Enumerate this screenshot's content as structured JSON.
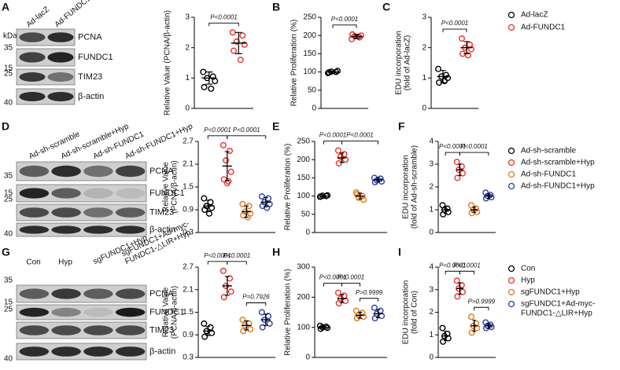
{
  "panel_letters": [
    "A",
    "B",
    "C",
    "D",
    "E",
    "F",
    "G",
    "H",
    "I"
  ],
  "blots": [
    {
      "kda": "kDa",
      "markers": [
        "35",
        "15",
        "25",
        "40"
      ],
      "lanes": [
        [
          "Ad-lacZ"
        ],
        [
          "Ad-FUNDC1"
        ]
      ],
      "proteins": [
        "PCNA",
        "FUNDC1",
        "TIM23",
        "β-actin"
      ]
    },
    {
      "markers": [
        "35",
        "15",
        "25",
        "40"
      ],
      "lanes": [
        [
          "Ad-sh-scramble"
        ],
        [
          "Ad-sh-scramble+Hyp"
        ],
        [
          "Ad-sh-FUNDC1"
        ],
        [
          "Ad-sh-FUNDC1+Hyp"
        ]
      ],
      "proteins": [
        "PCNA",
        "FUNDC1",
        "TIM23",
        "β-actin"
      ]
    },
    {
      "markers": [
        "35",
        "15",
        "25",
        "40"
      ],
      "lanes": [
        [
          "Con"
        ],
        [
          "Hyp"
        ],
        [
          "sgFUNDC1+Hyp"
        ],
        [
          "sgFUNDC1+Ad-myc-",
          "FUNDC1-△LIR+Hyp"
        ]
      ],
      "proteins": [
        "PCNA",
        "FUNDC1",
        "TIM23",
        "β-actin"
      ]
    }
  ],
  "legends": [
    [
      {
        "name": [
          "Ad-lacZ"
        ],
        "color": "#000000"
      },
      {
        "name": [
          "Ad-FUNDC1"
        ],
        "color": "#e8312a"
      }
    ],
    [
      {
        "name": [
          "Ad-sh-scramble"
        ],
        "color": "#000000"
      },
      {
        "name": [
          "Ad-sh-scramble+Hyp"
        ],
        "color": "#e8312a"
      },
      {
        "name": [
          "Ad-sh-FUNDC1"
        ],
        "color": "#e07b1a"
      },
      {
        "name": [
          "Ad-sh-FUNDC1+Hyp"
        ],
        "color": "#2d3fa0"
      }
    ],
    [
      {
        "name": [
          "Con"
        ],
        "color": "#000000"
      },
      {
        "name": [
          "Hyp"
        ],
        "color": "#e8312a"
      },
      {
        "name": [
          "sgFUNDC1+Hyp"
        ],
        "color": "#e07b1a"
      },
      {
        "name": [
          "sgFUNDC1+Ad-myc-",
          "FUNDC1-△LIR+Hyp"
        ],
        "color": "#2d3fa0"
      }
    ]
  ],
  "chart_data": [
    {
      "type": "dot",
      "ylabel": [
        "Relative Value (PCNA/β-actin)"
      ],
      "ylim": [
        0,
        3
      ],
      "yticks": [
        0,
        1,
        2,
        3
      ],
      "groups": [
        {
          "color": "#000000",
          "values": [
            1.2,
            1.05,
            1.0,
            0.9,
            0.7,
            0.65
          ],
          "mean": 1.0,
          "sd": 0.2
        },
        {
          "color": "#e8312a",
          "values": [
            2.5,
            2.4,
            2.2,
            2.1,
            1.9,
            1.6
          ],
          "mean": 2.15,
          "sd": 0.35
        }
      ],
      "comparisons": [
        {
          "between": [
            0,
            1
          ],
          "label": "P<0.0001"
        }
      ]
    },
    {
      "type": "dot",
      "ylabel": [
        "Relative Proliferation (%)"
      ],
      "ylim": [
        0,
        250
      ],
      "yticks": [
        0,
        50,
        100,
        150,
        200,
        250
      ],
      "groups": [
        {
          "color": "#000000",
          "values": [
            97,
            100,
            101,
            103,
            99
          ],
          "mean": 100,
          "sd": 3
        },
        {
          "color": "#e8312a",
          "values": [
            190,
            195,
            198,
            200,
            203,
            197
          ],
          "mean": 197,
          "sd": 5
        }
      ],
      "comparisons": [
        {
          "between": [
            0,
            1
          ],
          "label": "P<0.0001"
        }
      ]
    },
    {
      "type": "dot",
      "ylabel": [
        "EDU incorporation",
        "(fold of Ad-lacZ)"
      ],
      "ylim": [
        0,
        3
      ],
      "yticks": [
        0,
        1,
        2,
        3
      ],
      "groups": [
        {
          "color": "#000000",
          "values": [
            1.3,
            1.1,
            1.05,
            1.0,
            0.85,
            0.9
          ],
          "mean": 1.05,
          "sd": 0.2
        },
        {
          "color": "#e8312a",
          "values": [
            2.3,
            2.1,
            2.0,
            1.95,
            1.8,
            1.75
          ],
          "mean": 2.0,
          "sd": 0.2
        }
      ],
      "comparisons": [
        {
          "between": [
            0,
            1
          ],
          "label": "P<0.0001"
        }
      ]
    },
    {
      "type": "dot",
      "ylabel": [
        "Relative Value",
        "(PCNA/β-actin)"
      ],
      "ylim": [
        0.3,
        2.7
      ],
      "yticks": [
        0.3,
        0.9,
        1.5,
        2.1,
        2.7
      ],
      "groups": [
        {
          "color": "#000000",
          "values": [
            1.2,
            1.1,
            1.0,
            0.95,
            0.9,
            0.8
          ],
          "mean": 1.0,
          "sd": 0.15
        },
        {
          "color": "#e8312a",
          "values": [
            2.6,
            2.45,
            2.2,
            1.9,
            1.7,
            1.65,
            1.6
          ],
          "mean": 2.05,
          "sd": 0.38
        },
        {
          "color": "#e07b1a",
          "values": [
            1.05,
            1.0,
            0.85,
            0.8,
            0.75,
            0.7
          ],
          "mean": 0.85,
          "sd": 0.15
        },
        {
          "color": "#2d3fa0",
          "values": [
            1.25,
            1.2,
            1.1,
            1.05,
            1.0,
            0.95
          ],
          "mean": 1.1,
          "sd": 0.12
        }
      ],
      "comparisons": [
        {
          "between": [
            0,
            1
          ],
          "label": "P<0.0001"
        },
        {
          "between": [
            1,
            3
          ],
          "label": "P<0.0001"
        }
      ]
    },
    {
      "type": "dot",
      "ylabel": [
        "Relative Proliferation (%)"
      ],
      "ylim": [
        0,
        250
      ],
      "yticks": [
        0,
        50,
        100,
        150,
        200,
        250
      ],
      "groups": [
        {
          "color": "#000000",
          "values": [
            98,
            100,
            101,
            102,
            99
          ],
          "mean": 100,
          "sd": 2
        },
        {
          "color": "#e8312a",
          "values": [
            225,
            215,
            208,
            200,
            190
          ],
          "mean": 205,
          "sd": 13
        },
        {
          "color": "#e07b1a",
          "values": [
            110,
            100,
            95,
            90,
            105
          ],
          "mean": 100,
          "sd": 8
        },
        {
          "color": "#2d3fa0",
          "values": [
            150,
            148,
            143,
            140,
            138
          ],
          "mean": 145,
          "sd": 5
        }
      ],
      "comparisons": [
        {
          "between": [
            0,
            1
          ],
          "label": "P<0.0001"
        },
        {
          "between": [
            1,
            3
          ],
          "label": "P<0.0001"
        }
      ]
    },
    {
      "type": "dot",
      "ylabel": [
        "EDU incorporation",
        "(fold of Ad-sh-scramble)"
      ],
      "ylim": [
        0,
        4
      ],
      "yticks": [
        0,
        1,
        2,
        3,
        4
      ],
      "groups": [
        {
          "color": "#000000",
          "values": [
            1.2,
            1.05,
            1.0,
            0.9,
            0.8
          ],
          "mean": 1.0,
          "sd": 0.15
        },
        {
          "color": "#e8312a",
          "values": [
            3.1,
            2.9,
            2.75,
            2.6,
            2.4
          ],
          "mean": 2.75,
          "sd": 0.25
        },
        {
          "color": "#e07b1a",
          "values": [
            1.2,
            1.05,
            1.0,
            0.9,
            0.85
          ],
          "mean": 1.0,
          "sd": 0.12
        },
        {
          "color": "#2d3fa0",
          "values": [
            1.75,
            1.65,
            1.6,
            1.55,
            1.5
          ],
          "mean": 1.6,
          "sd": 0.1
        }
      ],
      "comparisons": [
        {
          "between": [
            0,
            1
          ],
          "label": "P<0.0001"
        },
        {
          "between": [
            1,
            3
          ],
          "label": "P<0.0001"
        }
      ]
    },
    {
      "type": "dot",
      "ylabel": [
        "Relative Value",
        "(PCNA/β-actin)"
      ],
      "ylim": [
        0.3,
        2.7
      ],
      "yticks": [
        0.3,
        0.9,
        1.5,
        2.1,
        2.7
      ],
      "groups": [
        {
          "color": "#000000",
          "values": [
            1.2,
            1.1,
            1.0,
            0.95,
            0.85
          ],
          "mean": 1.0,
          "sd": 0.12
        },
        {
          "color": "#e8312a",
          "values": [
            2.6,
            2.4,
            2.2,
            2.05,
            1.9
          ],
          "mean": 2.2,
          "sd": 0.25
        },
        {
          "color": "#e07b1a",
          "values": [
            1.3,
            1.2,
            1.15,
            1.05,
            1.0
          ],
          "mean": 1.15,
          "sd": 0.12
        },
        {
          "color": "#2d3fa0",
          "values": [
            1.5,
            1.4,
            1.3,
            1.2,
            1.1
          ],
          "mean": 1.3,
          "sd": 0.15
        }
      ],
      "comparisons": [
        {
          "between": [
            0,
            1
          ],
          "label": "P<0.0001"
        },
        {
          "between": [
            1,
            2
          ],
          "label": "P<0.0001"
        },
        {
          "between": [
            2,
            3
          ],
          "label": "P=0.7926"
        }
      ]
    },
    {
      "type": "dot",
      "ylabel": [
        "Relative Proliferation (%)"
      ],
      "ylim": [
        0,
        300
      ],
      "yticks": [
        0,
        100,
        200,
        300
      ],
      "groups": [
        {
          "color": "#000000",
          "values": [
            105,
            102,
            100,
            98,
            95
          ],
          "mean": 100,
          "sd": 4
        },
        {
          "color": "#e8312a",
          "values": [
            215,
            205,
            195,
            188,
            180
          ],
          "mean": 195,
          "sd": 13
        },
        {
          "color": "#e07b1a",
          "values": [
            155,
            148,
            140,
            135,
            130
          ],
          "mean": 140,
          "sd": 10
        },
        {
          "color": "#2d3fa0",
          "values": [
            165,
            155,
            145,
            138,
            130
          ],
          "mean": 145,
          "sd": 13
        }
      ],
      "comparisons": [
        {
          "between": [
            0,
            1
          ],
          "label": "P<0.0001"
        },
        {
          "between": [
            1,
            2
          ],
          "label": "P<0.0001"
        },
        {
          "between": [
            2,
            3
          ],
          "label": "P>0.9999"
        }
      ]
    },
    {
      "type": "dot",
      "ylabel": [
        "EDU incorporation",
        "(fold of Con)"
      ],
      "ylim": [
        0,
        4
      ],
      "yticks": [
        0,
        1,
        2,
        3,
        4
      ],
      "groups": [
        {
          "color": "#000000",
          "values": [
            1.3,
            1.05,
            0.95,
            0.85,
            0.7
          ],
          "mean": 0.95,
          "sd": 0.2
        },
        {
          "color": "#e8312a",
          "values": [
            3.4,
            3.2,
            3.05,
            2.9,
            2.7
          ],
          "mean": 3.05,
          "sd": 0.25
        },
        {
          "color": "#e07b1a",
          "values": [
            1.8,
            1.5,
            1.4,
            1.3,
            1.1
          ],
          "mean": 1.4,
          "sd": 0.25
        },
        {
          "color": "#2d3fa0",
          "values": [
            1.55,
            1.45,
            1.4,
            1.35,
            1.3
          ],
          "mean": 1.4,
          "sd": 0.1
        }
      ],
      "comparisons": [
        {
          "between": [
            0,
            1
          ],
          "label": "P<0.0001"
        },
        {
          "between": [
            1,
            2
          ],
          "label": "P<0.0001"
        },
        {
          "between": [
            2,
            3
          ],
          "label": "P>0.9999"
        }
      ]
    }
  ]
}
